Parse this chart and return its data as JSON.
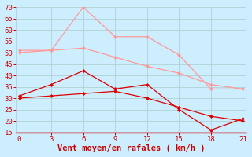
{
  "xlabel": "Vent moyen/en rafales ( km/h )",
  "x_values": [
    0,
    3,
    6,
    9,
    12,
    15,
    18,
    21
  ],
  "series": [
    {
      "name": "light_pink_peak",
      "values": [
        51,
        51,
        70,
        57,
        57,
        49,
        34,
        34
      ],
      "color": "#ff9999",
      "markersize": 2.5,
      "linewidth": 0.9,
      "linestyle": "-"
    },
    {
      "name": "light_pink_base",
      "values": [
        50,
        51,
        52,
        48,
        44,
        41,
        36,
        34
      ],
      "color": "#ff9999",
      "markersize": 2.5,
      "linewidth": 0.9,
      "linestyle": "-"
    },
    {
      "name": "dark_red_upper",
      "values": [
        31,
        36,
        42,
        34,
        36,
        25,
        16,
        21
      ],
      "color": "#dd0000",
      "markersize": 2.5,
      "linewidth": 0.9,
      "linestyle": "-"
    },
    {
      "name": "dark_red_lower",
      "values": [
        30,
        31,
        32,
        33,
        30,
        26,
        22,
        20
      ],
      "color": "#dd0000",
      "markersize": 2.5,
      "linewidth": 0.9,
      "linestyle": "-"
    }
  ],
  "ylim": [
    15,
    70
  ],
  "yticks": [
    15,
    20,
    25,
    30,
    35,
    40,
    45,
    50,
    55,
    60,
    65,
    70
  ],
  "xticks": [
    0,
    3,
    6,
    9,
    12,
    15,
    18,
    21
  ],
  "background_color": "#cceeff",
  "grid_color": "#aacccc",
  "tick_label_color": "#cc0000",
  "xlabel_color": "#cc0000",
  "xlabel_fontsize": 7.5,
  "tick_fontsize": 6.5
}
